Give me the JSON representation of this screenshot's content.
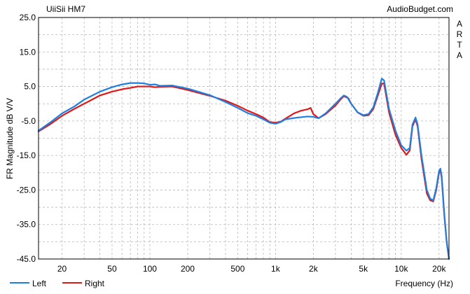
{
  "chart_data": {
    "type": "line",
    "title": "UiiSii HM7",
    "source": "AudioBudget.com",
    "side_label": "ARTA",
    "xlabel": "Frequency (Hz)",
    "ylabel": "FR Magnitude dB V/V",
    "x_scale": "log",
    "xlim": [
      13,
      24000
    ],
    "ylim": [
      -45,
      25
    ],
    "y_ticks": [
      "25.0",
      "15.0",
      "5.0",
      "-5.0",
      "-15.0",
      "-25.0",
      "-35.0",
      "-45.0"
    ],
    "x_ticks": [
      {
        "value": 20,
        "label": "20"
      },
      {
        "value": 50,
        "label": "50"
      },
      {
        "value": 100,
        "label": "100"
      },
      {
        "value": 200,
        "label": "200"
      },
      {
        "value": 500,
        "label": "500"
      },
      {
        "value": 1000,
        "label": "1k"
      },
      {
        "value": 2000,
        "label": "2k"
      },
      {
        "value": 5000,
        "label": "5k"
      },
      {
        "value": 10000,
        "label": "10k"
      },
      {
        "value": 20000,
        "label": "20k"
      }
    ],
    "grid": true,
    "legend": "bottom-left",
    "series": [
      {
        "name": "Left",
        "color": "#1f7fe0",
        "points": [
          [
            13,
            -7.8
          ],
          [
            16,
            -5.5
          ],
          [
            20,
            -2.8
          ],
          [
            25,
            -0.8
          ],
          [
            30,
            1.2
          ],
          [
            40,
            3.5
          ],
          [
            50,
            4.8
          ],
          [
            60,
            5.6
          ],
          [
            70,
            6.0
          ],
          [
            80,
            6.0
          ],
          [
            90,
            5.9
          ],
          [
            100,
            5.5
          ],
          [
            110,
            5.6
          ],
          [
            120,
            5.2
          ],
          [
            150,
            5.3
          ],
          [
            200,
            4.4
          ],
          [
            300,
            2.5
          ],
          [
            400,
            0.5
          ],
          [
            500,
            -1.2
          ],
          [
            600,
            -2.7
          ],
          [
            700,
            -3.5
          ],
          [
            800,
            -4.5
          ],
          [
            900,
            -5.5
          ],
          [
            1000,
            -5.8
          ],
          [
            1100,
            -5.3
          ],
          [
            1200,
            -4.5
          ],
          [
            1500,
            -4.0
          ],
          [
            1800,
            -3.7
          ],
          [
            2000,
            -3.8
          ],
          [
            2200,
            -4.2
          ],
          [
            2500,
            -2.8
          ],
          [
            3000,
            0.0
          ],
          [
            3300,
            1.6
          ],
          [
            3500,
            2.4
          ],
          [
            3700,
            2.0
          ],
          [
            4000,
            0.0
          ],
          [
            4500,
            -2.5
          ],
          [
            5000,
            -3.3
          ],
          [
            5500,
            -3.0
          ],
          [
            6000,
            -1.0
          ],
          [
            6500,
            3.0
          ],
          [
            7000,
            7.3
          ],
          [
            7300,
            6.8
          ],
          [
            8000,
            -1.5
          ],
          [
            9000,
            -7.8
          ],
          [
            10000,
            -12.0
          ],
          [
            11000,
            -13.6
          ],
          [
            11700,
            -12.8
          ],
          [
            12300,
            -6.0
          ],
          [
            13000,
            -4.0
          ],
          [
            13500,
            -6.0
          ],
          [
            14500,
            -15.0
          ],
          [
            16000,
            -25.0
          ],
          [
            17000,
            -27.5
          ],
          [
            18000,
            -28.0
          ],
          [
            19000,
            -24.5
          ],
          [
            20000,
            -19.5
          ],
          [
            20500,
            -18.8
          ],
          [
            21000,
            -21.0
          ],
          [
            22000,
            -32.0
          ],
          [
            23000,
            -40.0
          ],
          [
            24000,
            -45.0
          ]
        ]
      },
      {
        "name": "Right",
        "color": "#e01818",
        "points": [
          [
            13,
            -8.0
          ],
          [
            16,
            -6.0
          ],
          [
            20,
            -3.5
          ],
          [
            25,
            -1.5
          ],
          [
            30,
            0.0
          ],
          [
            40,
            2.4
          ],
          [
            50,
            3.5
          ],
          [
            60,
            4.2
          ],
          [
            70,
            4.6
          ],
          [
            80,
            5.0
          ],
          [
            90,
            5.0
          ],
          [
            100,
            5.0
          ],
          [
            110,
            4.8
          ],
          [
            120,
            4.9
          ],
          [
            150,
            5.0
          ],
          [
            200,
            4.0
          ],
          [
            300,
            2.3
          ],
          [
            400,
            0.9
          ],
          [
            500,
            -0.6
          ],
          [
            600,
            -2.0
          ],
          [
            700,
            -3.0
          ],
          [
            800,
            -4.0
          ],
          [
            900,
            -5.3
          ],
          [
            1000,
            -5.5
          ],
          [
            1100,
            -5.2
          ],
          [
            1200,
            -4.3
          ],
          [
            1400,
            -2.8
          ],
          [
            1600,
            -2.0
          ],
          [
            1800,
            -1.6
          ],
          [
            1900,
            -1.2
          ],
          [
            2000,
            -3.0
          ],
          [
            2200,
            -4.2
          ],
          [
            2500,
            -3.0
          ],
          [
            3000,
            -0.5
          ],
          [
            3300,
            1.3
          ],
          [
            3500,
            2.2
          ],
          [
            3800,
            1.6
          ],
          [
            4000,
            0.0
          ],
          [
            4500,
            -2.5
          ],
          [
            5000,
            -3.5
          ],
          [
            5500,
            -3.3
          ],
          [
            6000,
            -1.5
          ],
          [
            6500,
            2.3
          ],
          [
            7000,
            5.8
          ],
          [
            7300,
            5.9
          ],
          [
            8000,
            -2.5
          ],
          [
            9000,
            -9.0
          ],
          [
            10000,
            -12.8
          ],
          [
            11000,
            -14.8
          ],
          [
            11700,
            -13.5
          ],
          [
            12300,
            -6.5
          ],
          [
            13000,
            -4.5
          ],
          [
            13500,
            -6.5
          ],
          [
            14500,
            -16.0
          ],
          [
            16000,
            -26.0
          ],
          [
            17000,
            -28.0
          ],
          [
            18000,
            -28.3
          ],
          [
            19000,
            -25.0
          ],
          [
            20000,
            -20.0
          ],
          [
            20500,
            -19.3
          ],
          [
            21000,
            -21.5
          ],
          [
            22000,
            -32.0
          ],
          [
            23000,
            -40.0
          ],
          [
            24000,
            -45.0
          ]
        ]
      }
    ]
  }
}
